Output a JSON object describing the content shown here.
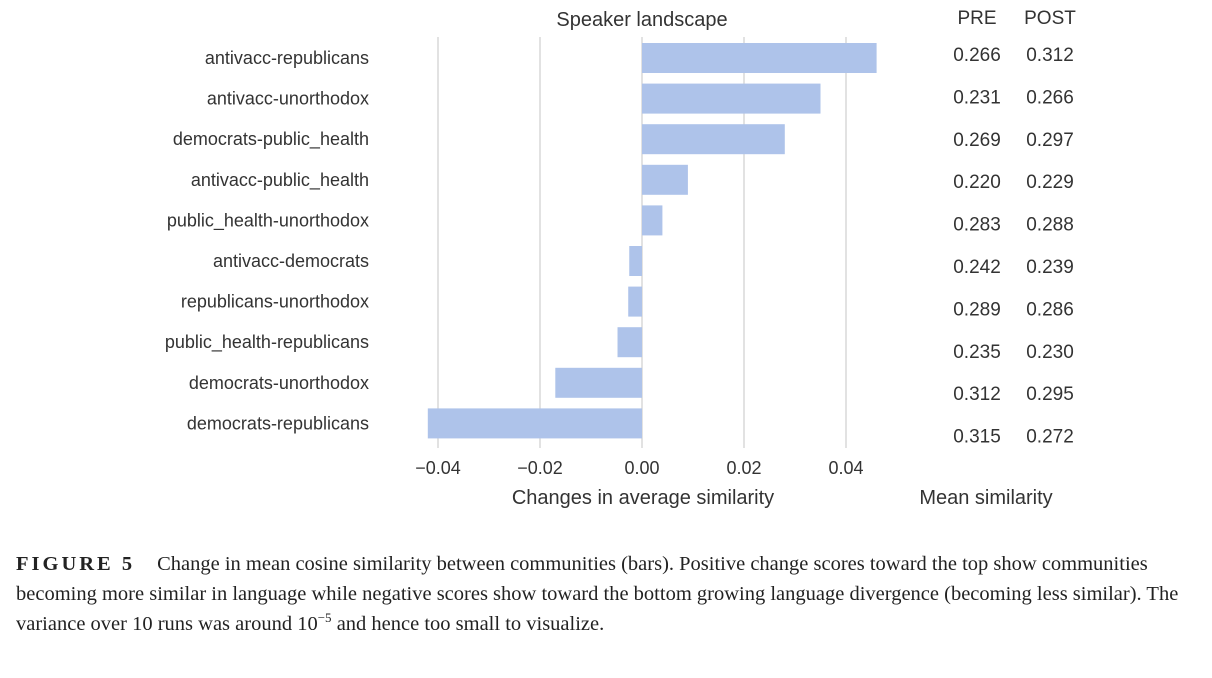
{
  "chart_data": {
    "type": "bar",
    "orientation": "horizontal",
    "title": "Speaker landscape",
    "xlabel": "Changes in average similarity",
    "xlim": [
      -0.045,
      0.047
    ],
    "xticks": [
      "-0.04",
      "-0.02",
      "0.00",
      "0.02",
      "0.04"
    ],
    "xtick_values": [
      -0.04,
      -0.02,
      0.0,
      0.02,
      0.04
    ],
    "grid": "vertical",
    "bar_color": "#aec3ea",
    "categories": [
      "antivacc-republicans",
      "antivacc-unorthodox",
      "democrats-public_health",
      "antivacc-public_health",
      "public_health-unorthodox",
      "antivacc-democrats",
      "republicans-unorthodox",
      "public_health-republicans",
      "democrats-unorthodox",
      "democrats-republicans"
    ],
    "values": [
      0.046,
      0.035,
      0.028,
      0.009,
      0.004,
      -0.0025,
      -0.0027,
      -0.0048,
      -0.017,
      -0.042
    ],
    "table": {
      "label": "Mean similarity",
      "headers": [
        "PRE",
        "POST"
      ],
      "rows": [
        [
          "0.266",
          "0.312"
        ],
        [
          "0.231",
          "0.266"
        ],
        [
          "0.269",
          "0.297"
        ],
        [
          "0.220",
          "0.229"
        ],
        [
          "0.283",
          "0.288"
        ],
        [
          "0.242",
          "0.239"
        ],
        [
          "0.289",
          "0.286"
        ],
        [
          "0.235",
          "0.230"
        ],
        [
          "0.312",
          "0.295"
        ],
        [
          "0.315",
          "0.272"
        ]
      ]
    }
  },
  "caption": {
    "label": "FIGURE 5",
    "text_before": "Change in mean cosine similarity between communities (bars). Positive change scores toward the top show communities becoming more similar in language while negative scores show toward the bottom growing language divergence (becoming less similar). The variance over 10 runs was around 10",
    "superscript": "−5",
    "text_after": " and hence too small to visualize."
  }
}
